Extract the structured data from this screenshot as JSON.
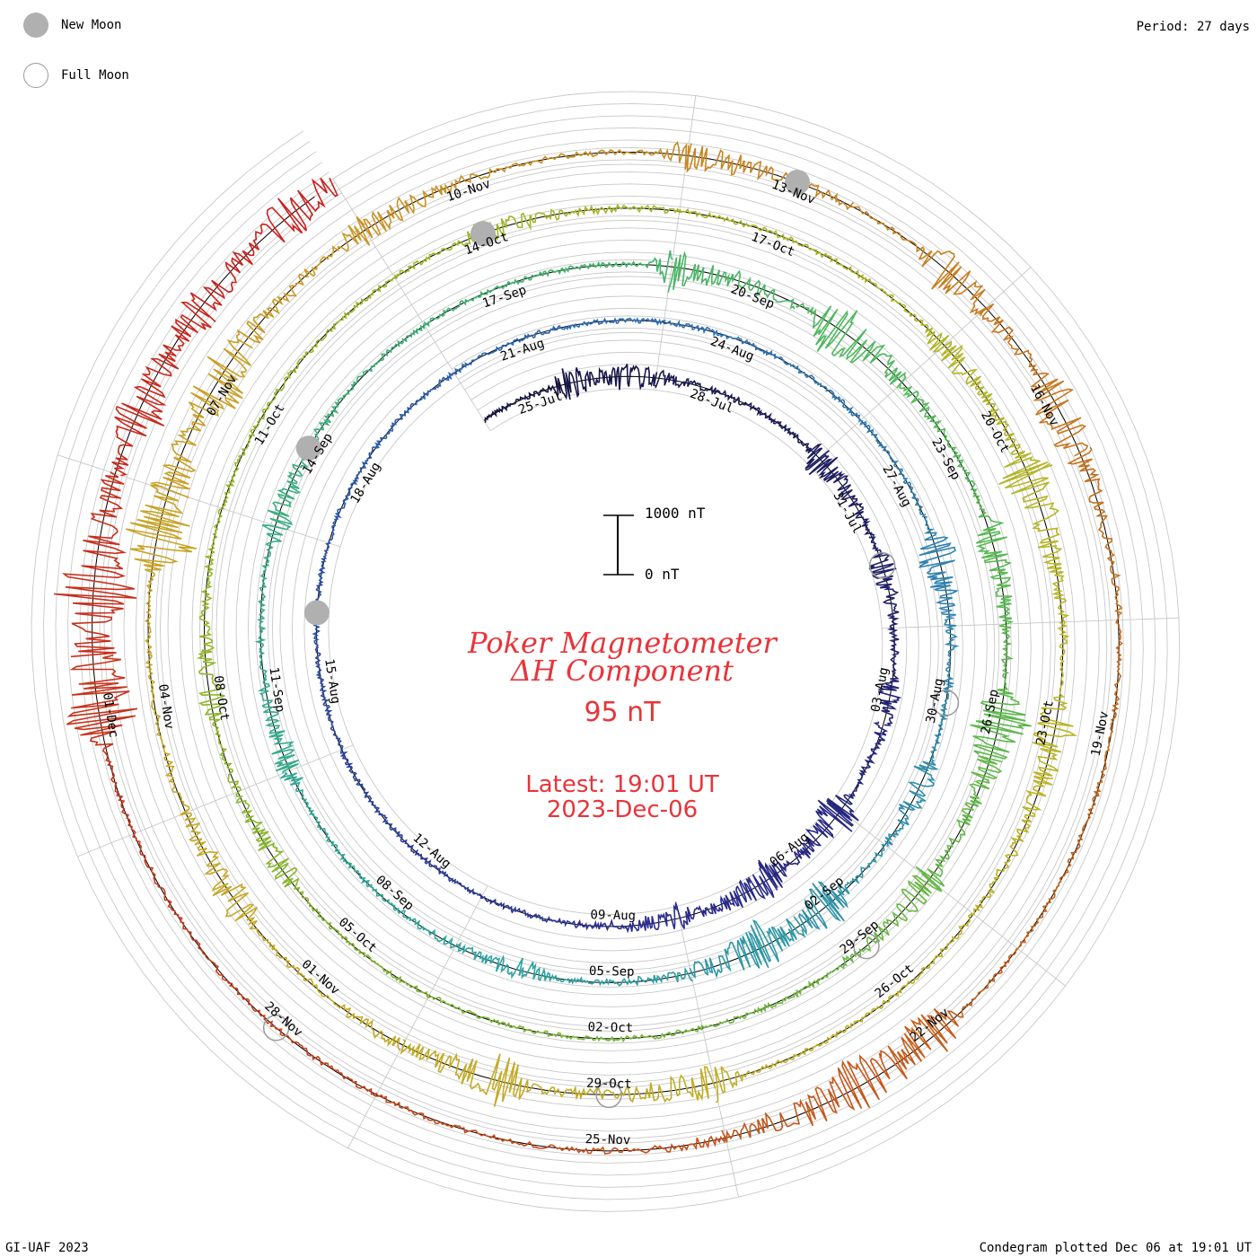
{
  "header": {
    "period": "Period: 27 days",
    "footer_left": "GI-UAF 2023",
    "footer_right": "Condegram plotted Dec 06 at 19:01 UT"
  },
  "legend": {
    "new_moon": "New Moon",
    "full_moon": "Full Moon"
  },
  "center": {
    "title_line1": "Poker Magnetometer",
    "title_line2": "ΔH Component",
    "value": "95 nT",
    "latest_line1": "Latest: 19:01 UT",
    "latest_line2": "2023-Dec-06"
  },
  "scale": {
    "top_label": "1000 nT",
    "bottom_label": "0 nT"
  },
  "chart_data": {
    "type": "line",
    "title": "Poker Magnetometer ΔH Component",
    "subtitle": "Condegram (spiral), period 27 days",
    "start_date": "2023-07-24",
    "end_date": "2023-12-06",
    "period_days": 27,
    "y_unit": "nT",
    "scale_bar": [
      0,
      1000
    ],
    "latest_value_nT": 95,
    "series": [
      {
        "cycle": 1,
        "color": "#14143c",
        "date_from": "2023-07-24",
        "date_to": "2023-08-20"
      },
      {
        "cycle": 2,
        "color": "#2b2b9c",
        "date_from": "2023-08-20",
        "date_to": "2023-09-16"
      },
      {
        "cycle": 3,
        "color": "#2fa6a0",
        "date_from": "2023-09-16",
        "date_to": "2023-10-13"
      },
      {
        "cycle": 4,
        "color": "#8cb52a",
        "date_from": "2023-10-13",
        "date_to": "2023-11-09"
      },
      {
        "cycle": 5,
        "color": "#c9a326",
        "date_from": "2023-11-09",
        "date_to": "2023-12-06"
      }
    ],
    "date_labels": [
      {
        "label": "25-Jul",
        "day": 1
      },
      {
        "label": "28-Jul",
        "day": 4
      },
      {
        "label": "31-Jul",
        "day": 7
      },
      {
        "label": "03-Aug",
        "day": 10
      },
      {
        "label": "06-Aug",
        "day": 13
      },
      {
        "label": "09-Aug",
        "day": 16
      },
      {
        "label": "12-Aug",
        "day": 19
      },
      {
        "label": "15-Aug",
        "day": 22
      },
      {
        "label": "18-Aug",
        "day": 25
      },
      {
        "label": "21-Aug",
        "day": 28
      },
      {
        "label": "24-Aug",
        "day": 31
      },
      {
        "label": "27-Aug",
        "day": 34
      },
      {
        "label": "30-Aug",
        "day": 37
      },
      {
        "label": "02-Sep",
        "day": 40
      },
      {
        "label": "05-Sep",
        "day": 43
      },
      {
        "label": "08-Sep",
        "day": 46
      },
      {
        "label": "11-Sep",
        "day": 49
      },
      {
        "label": "14-Sep",
        "day": 52
      },
      {
        "label": "17-Sep",
        "day": 55
      },
      {
        "label": "20-Sep",
        "day": 58
      },
      {
        "label": "23-Sep",
        "day": 61
      },
      {
        "label": "26-Sep",
        "day": 64
      },
      {
        "label": "29-Sep",
        "day": 67
      },
      {
        "label": "02-Oct",
        "day": 70
      },
      {
        "label": "05-Oct",
        "day": 73
      },
      {
        "label": "08-Oct",
        "day": 76
      },
      {
        "label": "11-Oct",
        "day": 79
      },
      {
        "label": "14-Oct",
        "day": 82
      },
      {
        "label": "17-Oct",
        "day": 85
      },
      {
        "label": "20-Oct",
        "day": 88
      },
      {
        "label": "23-Oct",
        "day": 91
      },
      {
        "label": "26-Oct",
        "day": 94
      },
      {
        "label": "29-Oct",
        "day": 97
      },
      {
        "label": "01-Nov",
        "day": 100
      },
      {
        "label": "04-Nov",
        "day": 103
      },
      {
        "label": "07-Nov",
        "day": 106
      },
      {
        "label": "10-Nov",
        "day": 109
      },
      {
        "label": "13-Nov",
        "day": 112
      },
      {
        "label": "16-Nov",
        "day": 115
      },
      {
        "label": "19-Nov",
        "day": 118
      },
      {
        "label": "22-Nov",
        "day": 121
      },
      {
        "label": "25-Nov",
        "day": 124
      },
      {
        "label": "28-Nov",
        "day": 127
      },
      {
        "label": "01-Dec",
        "day": 130
      }
    ],
    "new_moon_days": [
      23,
      52,
      82,
      112
    ],
    "full_moon_days": [
      8,
      37,
      67,
      97,
      127
    ],
    "activity_events": [
      {
        "day": 1.5,
        "amp": 0.9
      },
      {
        "day": 2.5,
        "amp": 0.6
      },
      {
        "day": 6,
        "amp": 0.9
      },
      {
        "day": 8,
        "amp": 0.7
      },
      {
        "day": 10,
        "amp": 0.6
      },
      {
        "day": 12,
        "amp": 1.3
      },
      {
        "day": 13.5,
        "amp": 1.0
      },
      {
        "day": 15,
        "amp": 0.6
      },
      {
        "day": 35,
        "amp": 1.2
      },
      {
        "day": 38,
        "amp": 0.8
      },
      {
        "day": 40,
        "amp": 1.3
      },
      {
        "day": 41,
        "amp": 1.1
      },
      {
        "day": 44,
        "amp": 0.6
      },
      {
        "day": 48,
        "amp": 0.9
      },
      {
        "day": 51,
        "amp": 0.8
      },
      {
        "day": 57,
        "amp": 1.2
      },
      {
        "day": 59,
        "amp": 1.6
      },
      {
        "day": 62,
        "amp": 1.0
      },
      {
        "day": 64,
        "amp": 1.8
      },
      {
        "day": 66,
        "amp": 0.9
      },
      {
        "day": 74,
        "amp": 0.7
      },
      {
        "day": 76,
        "amp": 0.7
      },
      {
        "day": 82,
        "amp": 0.6
      },
      {
        "day": 87,
        "amp": 0.8
      },
      {
        "day": 88.5,
        "amp": 1.5
      },
      {
        "day": 91,
        "amp": 1.2
      },
      {
        "day": 96,
        "amp": 1.1
      },
      {
        "day": 98,
        "amp": 1.4
      },
      {
        "day": 101,
        "amp": 1.0
      },
      {
        "day": 104.5,
        "amp": 2.2
      },
      {
        "day": 106,
        "amp": 1.3
      },
      {
        "day": 108,
        "amp": 0.8
      },
      {
        "day": 111,
        "amp": 0.9
      },
      {
        "day": 113.5,
        "amp": 1.2
      },
      {
        "day": 115,
        "amp": 1.4
      },
      {
        "day": 121,
        "amp": 1.7
      },
      {
        "day": 121.8,
        "amp": 1.1
      },
      {
        "day": 130,
        "amp": 2.4
      },
      {
        "day": 131,
        "amp": 1.6
      },
      {
        "day": 132.5,
        "amp": 1.2
      },
      {
        "day": 133.5,
        "amp": 0.8
      },
      {
        "day": 134.5,
        "amp": 1.0
      }
    ]
  }
}
